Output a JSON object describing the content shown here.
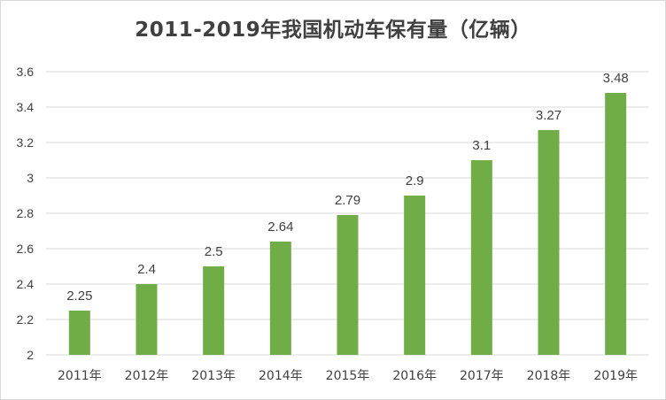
{
  "chart_data": {
    "type": "bar",
    "title": "2011-2019年我国机动车保有量（亿辆）",
    "categories": [
      "2011年",
      "2012年",
      "2013年",
      "2014年",
      "2015年",
      "2016年",
      "2017年",
      "2018年",
      "2019年"
    ],
    "values": [
      2.25,
      2.4,
      2.5,
      2.64,
      2.79,
      2.9,
      3.1,
      3.27,
      3.48
    ],
    "data_labels": [
      "2.25",
      "2.4",
      "2.5",
      "2.64",
      "2.79",
      "2.9",
      "3.1",
      "3.27",
      "3.48"
    ],
    "y_ticks": [
      "2",
      "2.2",
      "2.4",
      "2.6",
      "2.8",
      "3",
      "3.2",
      "3.4",
      "3.6"
    ],
    "ylim": [
      2,
      3.6
    ],
    "grid": true,
    "legend": "none",
    "bar_color": "#70ad47",
    "grid_color": "#d9d9d9"
  }
}
